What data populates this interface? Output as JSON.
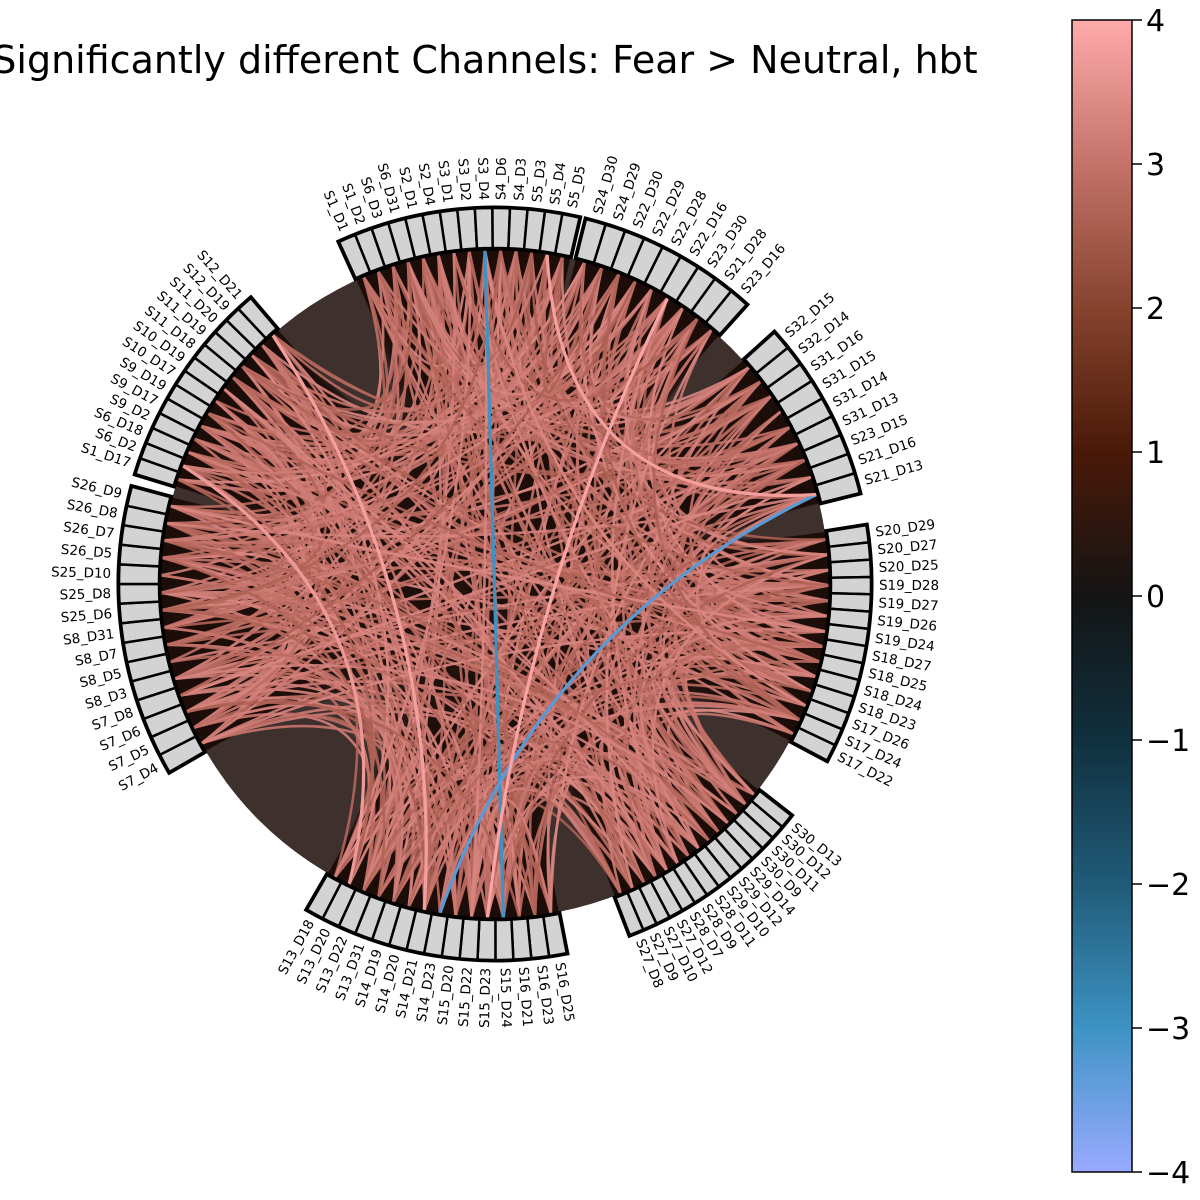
{
  "title": "Significantly different Channels: Fear > Neutral, hbt",
  "colorbar": {
    "ticks": [
      "4",
      "3",
      "2",
      "1",
      "0",
      "−1",
      "−2",
      "−3",
      "−4"
    ],
    "tick_values": [
      4,
      3,
      2,
      1,
      0,
      -1,
      -2,
      -3,
      -4
    ],
    "stops": [
      {
        "value": 4,
        "color": "#ffaaaa"
      },
      {
        "value": 3,
        "color": "#c4726a"
      },
      {
        "value": 2,
        "color": "#86432e"
      },
      {
        "value": 1,
        "color": "#4a1908"
      },
      {
        "value": 0,
        "color": "#141414"
      },
      {
        "value": -1,
        "color": "#10303e"
      },
      {
        "value": -2,
        "color": "#205b78"
      },
      {
        "value": -3,
        "color": "#3d93c4"
      },
      {
        "value": -4,
        "color": "#99aaff"
      }
    ]
  },
  "chart_data": {
    "type": "chord",
    "value_range": [
      -4,
      4
    ],
    "groups": [
      {
        "name": "A",
        "labels": [
          "S1_D1",
          "S1_D2",
          "S6_D3",
          "S6_D31",
          "S2_D1",
          "S2_D4",
          "S3_D1",
          "S3_D2",
          "S3_D4",
          "S4_D6",
          "S4_D3",
          "S5_D3",
          "S5_D4",
          "S5_D5"
        ]
      },
      {
        "name": "B",
        "labels": [
          "S24_D30",
          "S24_D29",
          "S22_D30",
          "S22_D29",
          "S22_D28",
          "S22_D16",
          "S23_D30",
          "S21_D28",
          "S23_D16"
        ]
      },
      {
        "name": "C",
        "labels": [
          "S32_D15",
          "S32_D14",
          "S31_D16",
          "S31_D15",
          "S31_D14",
          "S31_D13",
          "S23_D15",
          "S21_D16",
          "S21_D13"
        ]
      },
      {
        "name": "D",
        "labels": [
          "S20_D29",
          "S20_D27",
          "S20_D25",
          "S19_D28",
          "S19_D27",
          "S19_D26",
          "S19_D24",
          "S18_D27",
          "S18_D25",
          "S18_D24",
          "S18_D23",
          "S17_D26",
          "S17_D24",
          "S17_D22"
        ]
      },
      {
        "name": "E",
        "labels": [
          "S30_D13",
          "S30_D12",
          "S30_D11",
          "S30_D9",
          "S29_D14",
          "S29_D12",
          "S29_D10",
          "S28_D11",
          "S28_D9",
          "S28_D7",
          "S27_D12",
          "S27_D10",
          "S27_D9",
          "S27_D8"
        ]
      },
      {
        "name": "F",
        "labels": [
          "S16_D25",
          "S16_D23",
          "S16_D21",
          "S15_D24",
          "S15_D23",
          "S15_D22",
          "S15_D20",
          "S14_D23",
          "S14_D21",
          "S14_D20",
          "S14_D19",
          "S13_D31",
          "S13_D22",
          "S13_D20",
          "S13_D18"
        ]
      },
      {
        "name": "G",
        "labels": [
          "S7_D4",
          "S7_D5",
          "S7_D6",
          "S7_D8",
          "S8_D3",
          "S8_D5",
          "S8_D7",
          "S8_D31",
          "S25_D6",
          "S25_D8",
          "S25_D10",
          "S26_D5",
          "S26_D7",
          "S26_D8",
          "S26_D9"
        ]
      },
      {
        "name": "H",
        "labels": [
          "S1_D17",
          "S6_D2",
          "S6_D18",
          "S9_D2",
          "S9_D17",
          "S9_D19",
          "S10_D17",
          "S10_D19",
          "S11_D18",
          "S11_D19",
          "S11_D20",
          "S12_D19",
          "S12_D21"
        ]
      }
    ],
    "highlighted_links": [
      {
        "source": "S3_D4",
        "target": "S15_D24",
        "value": -3.0
      },
      {
        "source": "S21_D13",
        "target": "S14_D23",
        "value": -3.3
      },
      {
        "source": "S22_D16",
        "target": "S15_D23",
        "value": 3.9
      },
      {
        "source": "S5_D4",
        "target": "S21_D13",
        "value": 3.8
      },
      {
        "source": "S12_D21",
        "target": "S14_D21",
        "value": 3.8
      },
      {
        "source": "S6_D2",
        "target": "S13_D20",
        "value": 3.7
      }
    ],
    "background_link_value": 3.0
  }
}
